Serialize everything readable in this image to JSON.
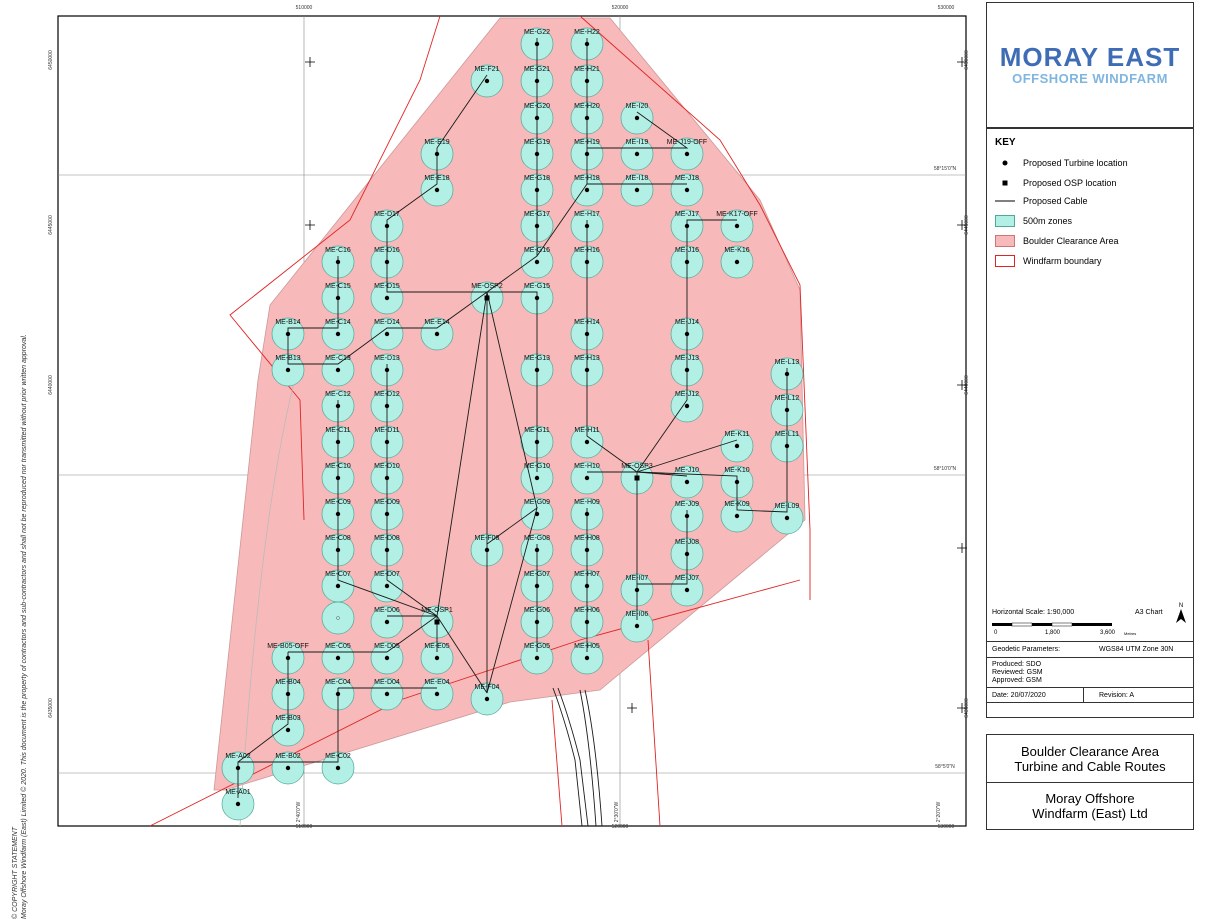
{
  "logo": {
    "line1": "MORAY EAST",
    "line2": "OFFSHORE WINDFARM"
  },
  "key": {
    "title": "KEY",
    "items": [
      {
        "label": "Proposed Turbine location",
        "symbol": "dot"
      },
      {
        "label": "Proposed OSP location",
        "symbol": "square"
      },
      {
        "label": "Proposed Cable",
        "symbol": "line"
      },
      {
        "label": "500m zones",
        "symbol": "cyan-fill"
      },
      {
        "label": "Boulder Clearance Area",
        "symbol": "pink-fill"
      },
      {
        "label": "Windfarm boundary",
        "symbol": "red-outline"
      }
    ]
  },
  "scale": {
    "horizontal": "Horizontal Scale: 1:90,000",
    "sheet": "A3 Chart",
    "ticks": [
      "0",
      "1,800",
      "3,600"
    ],
    "unit": "Metres",
    "north": "N",
    "geodetic_label": "Geodetic Parameters:",
    "geodetic_value": "WGS84 UTM Zone 30N",
    "produced": "Produced: SDO",
    "reviewed": "Reviewed: GSM",
    "approved": "Approved: GSM",
    "date": "Date: 20/07/2020",
    "revision": "Revision: A"
  },
  "title": {
    "line1": "Boulder Clearance Area",
    "line2": "Turbine and Cable Routes"
  },
  "owner": {
    "line1": "Moray Offshore",
    "line2": "Windfarm (East) Ltd"
  },
  "copyright": {
    "line1": "© COPYRIGHT STATEMENT",
    "line2": "Moray Offshore Windfarm (East) Limited © 2020. This document is the property of contractors and sub-contractors and shall not be reproduced nor transmitted without prior written approval."
  },
  "grid_labels": {
    "top": [
      "510000",
      "520000",
      "530000"
    ],
    "bottom": [
      "510000",
      "520000",
      "530000"
    ],
    "left": [
      "6450000",
      "6445000",
      "6440000",
      "6435000"
    ],
    "right": [
      "6450000",
      "6445000",
      "6440000",
      "6435000"
    ],
    "lat": [
      "58°15'0\"N",
      "58°10'0\"N",
      "58°5'0\"N"
    ],
    "lon": [
      "2°40'0\"W",
      "2°30'0\"W",
      "2°20'0\"W"
    ]
  },
  "colors": {
    "zone": "#b2f0e6",
    "zone_stroke": "#4fa89a",
    "clearance": "#f7b9b9",
    "boundary": "#e02424",
    "cable": "#1a1a1a",
    "logo_dark": "#3e6db5",
    "logo_light": "#7fb6e0"
  },
  "turbines": [
    "ME-G22",
    "ME-H22",
    "ME-F21",
    "ME-G21",
    "ME-H21",
    "ME-G20",
    "ME-H20",
    "ME-I20",
    "ME-E19",
    "ME-G19",
    "ME-H19",
    "ME-I19",
    "ME-J19-OFF",
    "ME-E18",
    "ME-G18",
    "ME-H18",
    "ME-I18",
    "ME-J18",
    "ME-D17",
    "ME-G17",
    "ME-H17",
    "ME-J17",
    "ME-K17-OFF",
    "ME-C16",
    "ME-D16",
    "ME-G16",
    "ME-H16",
    "ME-J16",
    "ME-K16",
    "ME-C15",
    "ME-D15",
    "ME-OSP2",
    "ME-G15",
    "ME-B14",
    "ME-C14",
    "ME-D14",
    "ME-E14",
    "ME-H14",
    "ME-J14",
    "ME-B13",
    "ME-C13",
    "ME-D13",
    "ME-G13",
    "ME-H13",
    "ME-J13",
    "ME-L13",
    "ME-C12",
    "ME-D12",
    "ME-J12",
    "ME-L12",
    "ME-C11",
    "ME-D11",
    "ME-G11",
    "ME-H11",
    "ME-K11",
    "ME-L11",
    "ME-C10",
    "ME-D10",
    "ME-G10",
    "ME-H10",
    "ME-OSP3",
    "ME-J10",
    "ME-K10",
    "ME-C09",
    "ME-D09",
    "ME-G09",
    "ME-H09",
    "ME-J09",
    "ME-K09",
    "ME-L09",
    "ME-C08",
    "ME-D08",
    "ME-F08",
    "ME-G08",
    "ME-H08",
    "ME-J08",
    "ME-C07",
    "ME-D07",
    "ME-G07",
    "ME-H07",
    "ME-I07",
    "ME-J07",
    "ME-D06",
    "ME-OSP1",
    "ME-G06",
    "ME-H06",
    "ME-I06",
    "ME-B05-OFF",
    "ME-C05",
    "ME-D05",
    "ME-E05",
    "ME-G05",
    "ME-H05",
    "ME-B04",
    "ME-C04",
    "ME-D04",
    "ME-E04",
    "ME-F04",
    "ME-B03",
    "ME-A02",
    "ME-B02",
    "ME-C02",
    "ME-A01"
  ]
}
